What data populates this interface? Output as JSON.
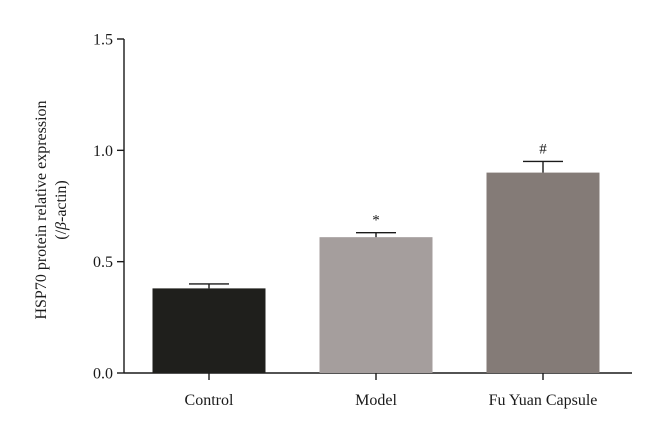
{
  "chart_data": {
    "type": "bar",
    "title": "",
    "xlabel": "",
    "ylabel_line1": "HSP70 protein relative expression",
    "ylabel_line2_prefix": "(/",
    "ylabel_line2_greek": "β",
    "ylabel_line2_suffix": "-actin)",
    "categories": [
      "Control",
      "Model",
      "Fu Yuan Capsule"
    ],
    "values": [
      0.38,
      0.61,
      0.9
    ],
    "errors": [
      0.02,
      0.02,
      0.05
    ],
    "annotations": [
      "",
      "*",
      "#"
    ],
    "bar_colors": [
      "#1f1f1c",
      "#a59e9d",
      "#847b77"
    ],
    "ylim": [
      0,
      1.5
    ],
    "yticks": [
      0.0,
      0.5,
      1.0,
      1.5
    ],
    "ytick_labels": [
      "0.0",
      "0.5",
      "1.0",
      "1.5"
    ],
    "grid": false,
    "legend": "none"
  }
}
